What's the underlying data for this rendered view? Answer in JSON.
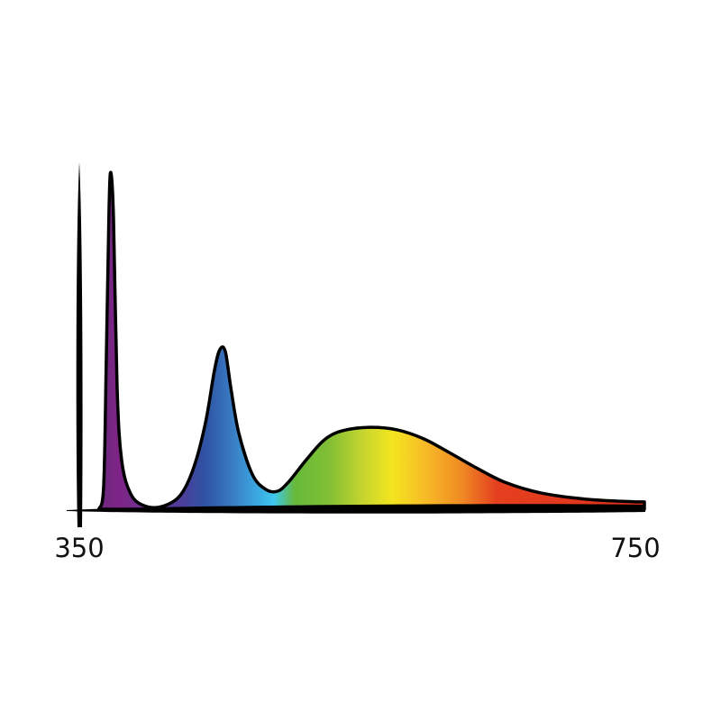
{
  "chart_data": {
    "type": "area",
    "title": "",
    "xlabel": "",
    "ylabel": "",
    "xlim": [
      350,
      750
    ],
    "ylim": [
      0,
      1
    ],
    "grid": false,
    "legend": "none",
    "x_tick_labels": [
      "350",
      "750"
    ],
    "x_ticks": [
      350,
      750
    ],
    "series": [
      {
        "x": [
          364,
          367.5,
          369.4,
          371.4,
          372.7,
          374.6,
          377.2,
          380.5,
          387,
          396.7,
          409.6,
          422.6,
          432.3,
          440.8,
          447.2,
          451.1,
          455,
          459,
          464.7,
          474.5,
          484.2,
          492.6,
          500.4,
          513.4,
          526.3,
          539.3,
          558.8,
          578.2,
          597.7,
          617.1,
          636.6,
          656,
          682,
          714.3,
          750
        ],
        "y": [
          0,
          0.065,
          0.43,
          0.87,
          0.97,
          0.84,
          0.35,
          0.14,
          0.044,
          0.01,
          0.008,
          0.04,
          0.12,
          0.25,
          0.4,
          0.46,
          0.455,
          0.35,
          0.22,
          0.1,
          0.057,
          0.052,
          0.078,
          0.143,
          0.2,
          0.226,
          0.236,
          0.229,
          0.203,
          0.161,
          0.117,
          0.078,
          0.047,
          0.029,
          0.021
        ]
      }
    ],
    "fill_gradient": [
      {
        "nm": 364,
        "color": "#6a2a7e"
      },
      {
        "nm": 378,
        "color": "#7e2486"
      },
      {
        "nm": 400,
        "color": "#6a3590"
      },
      {
        "nm": 425,
        "color": "#4a3f9a"
      },
      {
        "nm": 440,
        "color": "#2f52a2"
      },
      {
        "nm": 460,
        "color": "#3a7cc4"
      },
      {
        "nm": 478,
        "color": "#3aa8e0"
      },
      {
        "nm": 490,
        "color": "#3ec8ee"
      },
      {
        "nm": 505,
        "color": "#66b93a"
      },
      {
        "nm": 530,
        "color": "#82bf34"
      },
      {
        "nm": 555,
        "color": "#c9d62e"
      },
      {
        "nm": 575,
        "color": "#f4e51f"
      },
      {
        "nm": 600,
        "color": "#f7b927"
      },
      {
        "nm": 625,
        "color": "#f08a24"
      },
      {
        "nm": 650,
        "color": "#e4401f"
      },
      {
        "nm": 750,
        "color": "#e0301c"
      }
    ],
    "outline_color": "#000000"
  }
}
